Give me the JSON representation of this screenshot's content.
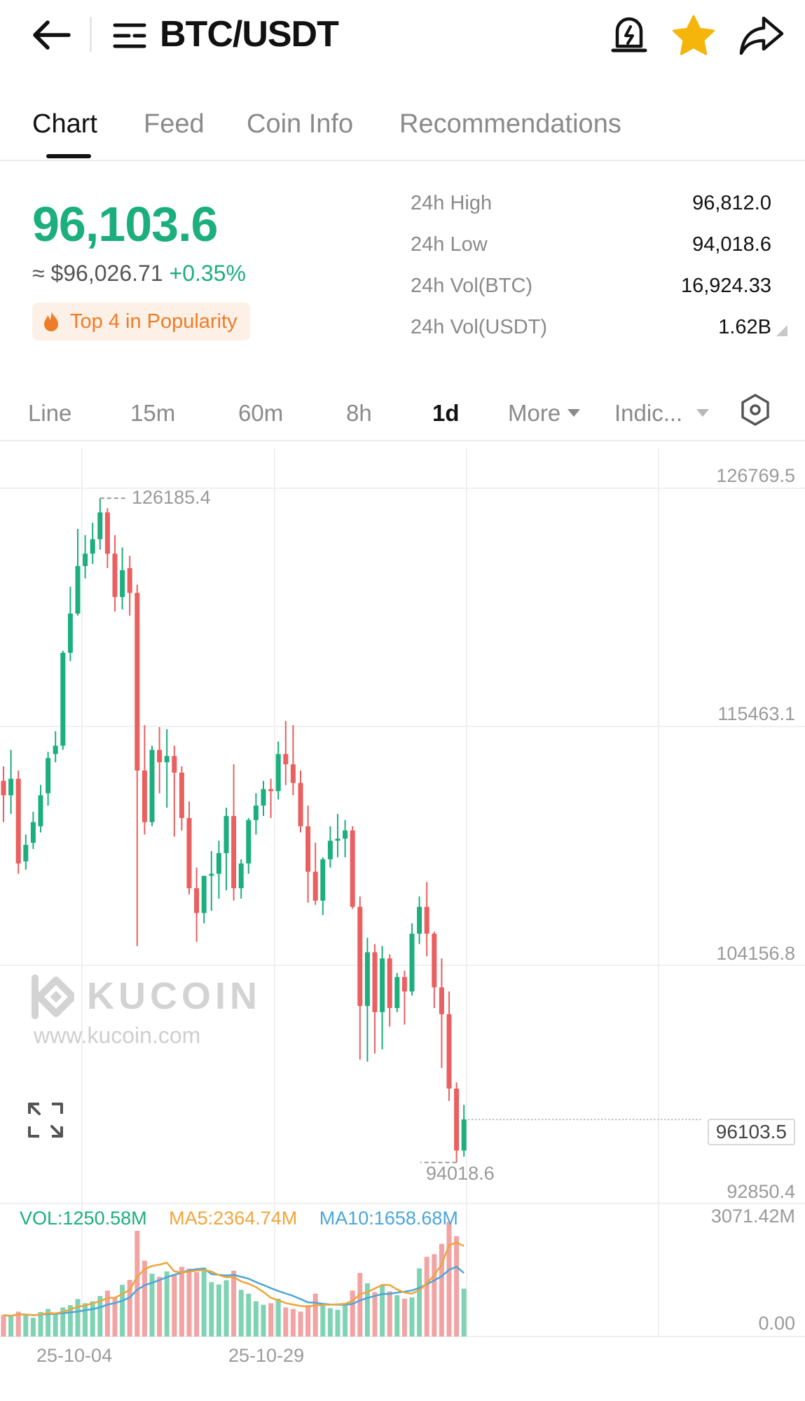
{
  "header": {
    "title": "BTC/USDT",
    "back_icon": "arrow-left-icon",
    "menu_icon": "list-menu-icon",
    "alert_icon": "price-alert-bell-icon",
    "favorite_icon": "star-icon",
    "share_icon": "share-arrow-icon",
    "star_color": "#f5b50a"
  },
  "tabs": [
    {
      "label": "Chart",
      "active": true
    },
    {
      "label": "Feed",
      "active": false
    },
    {
      "label": "Coin Info",
      "active": false
    },
    {
      "label": "Recommendations",
      "active": false
    }
  ],
  "ticker": {
    "last_price": "96,103.6",
    "fiat_approx": "≈ $96,026.71",
    "change": "+0.35%",
    "popularity": "Top 4 in Popularity",
    "up_color": "#1cae7d",
    "stats": [
      {
        "label": "24h High",
        "value": "96,812.0"
      },
      {
        "label": "24h Low",
        "value": "94,018.6"
      },
      {
        "label": "24h Vol(BTC)",
        "value": "16,924.33"
      },
      {
        "label": "24h Vol(USDT)",
        "value": "1.62B"
      }
    ]
  },
  "timeframes": {
    "items": [
      "Line",
      "15m",
      "60m",
      "8h",
      "1d"
    ],
    "active": "1d",
    "more_label": "More",
    "indicators_label": "Indic...",
    "settings_icon": "hexagon-settings-icon"
  },
  "watermark": {
    "name": "KUCOIN",
    "url": "www.kucoin.com"
  },
  "expand_icon": "fullscreen-expand-icon",
  "chart_data": {
    "type": "candlestick",
    "interval": "1d",
    "price_axis_labels": [
      "126769.5",
      "115463.1",
      "104156.8",
      "92850.4"
    ],
    "y_range": [
      92850.4,
      126769.5
    ],
    "last_price_label": "96103.5",
    "high_marker": "126185.4",
    "low_marker": "94018.6",
    "x_tick_labels": [
      "25-10-04",
      "25-10-29"
    ],
    "x_tick_candle_index": [
      11,
      36
    ],
    "candle_colors": {
      "up": "#1cae7d",
      "down": "#ea5f5f"
    },
    "candles": [
      {
        "o": 112500,
        "h": 113200,
        "c": 111800,
        "l": 110500
      },
      {
        "o": 111800,
        "h": 114000,
        "c": 112600,
        "l": 110900
      },
      {
        "o": 112600,
        "h": 113000,
        "c": 108500,
        "l": 108000
      },
      {
        "o": 108600,
        "h": 109900,
        "c": 109400,
        "l": 108200
      },
      {
        "o": 109500,
        "h": 111000,
        "c": 110500,
        "l": 109200
      },
      {
        "o": 110300,
        "h": 112300,
        "c": 111800,
        "l": 110000
      },
      {
        "o": 111900,
        "h": 113900,
        "c": 113600,
        "l": 111300
      },
      {
        "o": 113800,
        "h": 114900,
        "c": 114200,
        "l": 113400
      },
      {
        "o": 114200,
        "h": 118800,
        "c": 118700,
        "l": 114000
      },
      {
        "o": 118700,
        "h": 121900,
        "c": 120600,
        "l": 118300
      },
      {
        "o": 120600,
        "h": 124700,
        "c": 122900,
        "l": 120500
      },
      {
        "o": 122900,
        "h": 124400,
        "c": 123500,
        "l": 122300
      },
      {
        "o": 123500,
        "h": 125000,
        "c": 124200,
        "l": 123000
      },
      {
        "o": 124200,
        "h": 126185.4,
        "c": 125500,
        "l": 123700
      },
      {
        "o": 125500,
        "h": 125700,
        "c": 123500,
        "l": 122800
      },
      {
        "o": 123500,
        "h": 124400,
        "c": 121400,
        "l": 120700
      },
      {
        "o": 121400,
        "h": 123800,
        "c": 122700,
        "l": 120800
      },
      {
        "o": 122800,
        "h": 123400,
        "c": 121600,
        "l": 120500
      },
      {
        "o": 121600,
        "h": 122000,
        "c": 113000,
        "l": 104500
      },
      {
        "o": 113000,
        "h": 115200,
        "c": 110500,
        "l": 109900
      },
      {
        "o": 110500,
        "h": 114200,
        "c": 114000,
        "l": 110300
      },
      {
        "o": 114000,
        "h": 115100,
        "c": 113400,
        "l": 111900
      },
      {
        "o": 113400,
        "h": 115000,
        "c": 113700,
        "l": 111200
      },
      {
        "o": 113700,
        "h": 114200,
        "c": 112900,
        "l": 109800
      },
      {
        "o": 112900,
        "h": 113200,
        "c": 110700,
        "l": 110100
      },
      {
        "o": 110700,
        "h": 111500,
        "c": 107300,
        "l": 107000
      },
      {
        "o": 107300,
        "h": 108300,
        "c": 106100,
        "l": 104700
      },
      {
        "o": 106100,
        "h": 107900,
        "c": 107900,
        "l": 105600
      },
      {
        "o": 107900,
        "h": 109100,
        "c": 108000,
        "l": 106200
      },
      {
        "o": 108000,
        "h": 109600,
        "c": 109000,
        "l": 106800
      },
      {
        "o": 109000,
        "h": 111200,
        "c": 110800,
        "l": 107200
      },
      {
        "o": 110800,
        "h": 113300,
        "c": 107300,
        "l": 106700
      },
      {
        "o": 107300,
        "h": 108700,
        "c": 108500,
        "l": 106800
      },
      {
        "o": 108500,
        "h": 110700,
        "c": 110600,
        "l": 108000
      },
      {
        "o": 110600,
        "h": 111900,
        "c": 111300,
        "l": 109900
      },
      {
        "o": 111300,
        "h": 112500,
        "c": 112100,
        "l": 110800
      },
      {
        "o": 112100,
        "h": 112600,
        "c": 112000,
        "l": 110700
      },
      {
        "o": 112000,
        "h": 114400,
        "c": 113800,
        "l": 111600
      },
      {
        "o": 113800,
        "h": 115400,
        "c": 113300,
        "l": 112300
      },
      {
        "o": 113300,
        "h": 115200,
        "c": 112400,
        "l": 111800
      },
      {
        "o": 112400,
        "h": 113000,
        "c": 110300,
        "l": 110000
      },
      {
        "o": 110300,
        "h": 111300,
        "c": 108100,
        "l": 106600
      },
      {
        "o": 108100,
        "h": 109500,
        "c": 106700,
        "l": 106500
      },
      {
        "o": 106700,
        "h": 108800,
        "c": 108700,
        "l": 106000
      },
      {
        "o": 108700,
        "h": 110300,
        "c": 109600,
        "l": 108300
      },
      {
        "o": 109600,
        "h": 110900,
        "c": 109700,
        "l": 108800
      },
      {
        "o": 109700,
        "h": 110600,
        "c": 110100,
        "l": 108800
      },
      {
        "o": 110100,
        "h": 110300,
        "c": 106400,
        "l": 106300
      },
      {
        "o": 106400,
        "h": 106900,
        "c": 101600,
        "l": 99000
      },
      {
        "o": 101600,
        "h": 104900,
        "c": 104200,
        "l": 98900
      },
      {
        "o": 104200,
        "h": 104600,
        "c": 101300,
        "l": 99300
      },
      {
        "o": 101300,
        "h": 104500,
        "c": 103900,
        "l": 99500
      },
      {
        "o": 103900,
        "h": 104100,
        "c": 101500,
        "l": 100600
      },
      {
        "o": 101500,
        "h": 103200,
        "c": 103000,
        "l": 101300
      },
      {
        "o": 103000,
        "h": 103300,
        "c": 102300,
        "l": 100700
      },
      {
        "o": 102300,
        "h": 105600,
        "c": 105100,
        "l": 102100
      },
      {
        "o": 105100,
        "h": 106900,
        "c": 106400,
        "l": 104600
      },
      {
        "o": 106400,
        "h": 107600,
        "c": 105100,
        "l": 104000
      },
      {
        "o": 105100,
        "h": 105200,
        "c": 102500,
        "l": 101500
      },
      {
        "o": 102500,
        "h": 103900,
        "c": 101200,
        "l": 98600
      },
      {
        "o": 101200,
        "h": 102300,
        "c": 97600,
        "l": 97000
      },
      {
        "o": 97600,
        "h": 97900,
        "c": 94600,
        "l": 94018.6
      },
      {
        "o": 94600,
        "h": 96812.0,
        "c": 96103.5,
        "l": 94300
      }
    ],
    "volume": {
      "legend": {
        "vol": "VOL:1250.58M",
        "ma5": "MA5:2364.74M",
        "ma10": "MA10:1658.68M"
      },
      "axis_labels": [
        "3071.42M",
        "0.00"
      ],
      "y_range": [
        0,
        3071.42
      ],
      "unit": "M",
      "ma5_color": "#f0a53a",
      "ma10_color": "#4aa6d9",
      "values": [
        560,
        520,
        650,
        570,
        490,
        640,
        720,
        610,
        760,
        820,
        980,
        870,
        920,
        1060,
        1200,
        1020,
        1350,
        1480,
        2760,
        1980,
        1640,
        1560,
        1700,
        1630,
        1820,
        1770,
        1680,
        1800,
        1420,
        1360,
        1470,
        1720,
        1220,
        1120,
        920,
        830,
        870,
        990,
        760,
        720,
        650,
        820,
        1120,
        830,
        740,
        700,
        860,
        1200,
        1660,
        1390,
        1160,
        1330,
        1180,
        1080,
        990,
        1020,
        1780,
        2080,
        2150,
        2420,
        2990,
        2620,
        1250.58
      ],
      "ma5": [
        560,
        540,
        577,
        575,
        558,
        574,
        614,
        606,
        644,
        710,
        778,
        808,
        870,
        922,
        1006,
        1014,
        1110,
        1222,
        1558,
        1758,
        1842,
        1876,
        1928,
        1702,
        1670,
        1696,
        1720,
        1740,
        1698,
        1606,
        1546,
        1554,
        1438,
        1378,
        1290,
        1162,
        1012,
        946,
        874,
        834,
        798,
        786,
        814,
        828,
        832,
        842,
        854,
        934,
        1104,
        1162,
        1254,
        1348,
        1344,
        1228,
        1148,
        1120,
        1210,
        1390,
        1602,
        1890,
        2384,
        2452,
        2364.74
      ],
      "ma10": [
        560,
        540,
        577,
        575,
        558,
        572,
        590,
        592,
        610,
        631,
        652,
        687,
        714,
        763,
        834,
        872,
        935,
        1022,
        1222,
        1338,
        1404,
        1473,
        1551,
        1608,
        1670,
        1727,
        1760,
        1772,
        1633,
        1610,
        1593,
        1609,
        1561,
        1510,
        1420,
        1345,
        1263,
        1190,
        1124,
        1060,
        979,
        892,
        884,
        855,
        837,
        832,
        831,
        852,
        942,
        1009,
        1058,
        1109,
        1115,
        1147,
        1171,
        1203,
        1269,
        1367,
        1464,
        1572,
        1744,
        1822,
        1658.68
      ]
    }
  }
}
